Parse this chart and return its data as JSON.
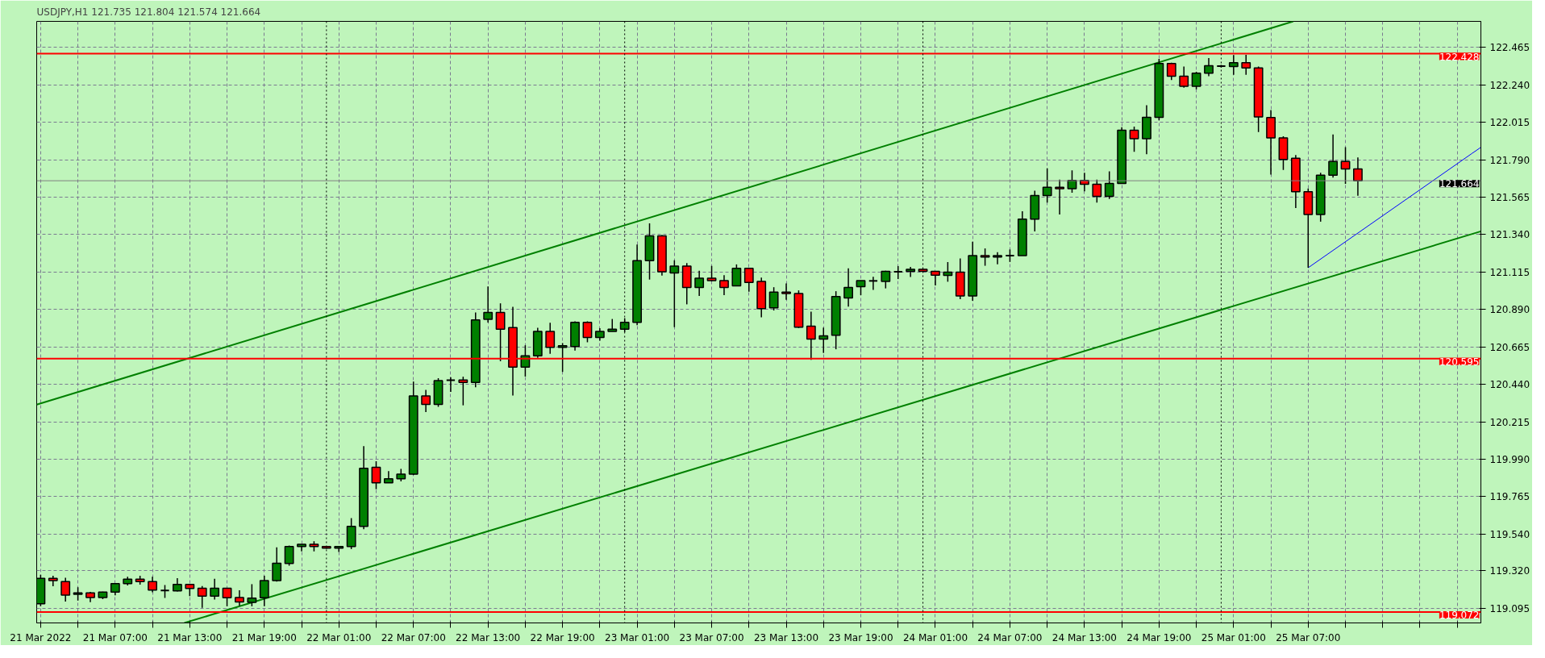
{
  "chart_data": {
    "type": "candlestick",
    "title": "USDJPY,H1  121.735 121.804 121.574 121.664",
    "x": [
      "2022-03-21T01:00",
      "2022-03-21T02:00",
      "2022-03-21T03:00",
      "2022-03-21T04:00",
      "2022-03-21T05:00",
      "2022-03-21T06:00",
      "2022-03-21T07:00",
      "2022-03-21T08:00",
      "2022-03-21T09:00",
      "2022-03-21T10:00",
      "2022-03-21T11:00",
      "2022-03-21T12:00",
      "2022-03-21T13:00",
      "2022-03-21T14:00",
      "2022-03-21T15:00",
      "2022-03-21T16:00",
      "2022-03-21T17:00",
      "2022-03-21T18:00",
      "2022-03-21T19:00",
      "2022-03-21T20:00",
      "2022-03-21T21:00",
      "2022-03-21T22:00",
      "2022-03-21T23:00",
      "2022-03-22T00:00",
      "2022-03-22T01:00",
      "2022-03-22T02:00",
      "2022-03-22T03:00",
      "2022-03-22T04:00",
      "2022-03-22T05:00",
      "2022-03-22T06:00",
      "2022-03-22T07:00",
      "2022-03-22T08:00",
      "2022-03-22T09:00",
      "2022-03-22T10:00",
      "2022-03-22T11:00",
      "2022-03-22T12:00",
      "2022-03-22T13:00",
      "2022-03-22T14:00",
      "2022-03-22T15:00",
      "2022-03-22T16:00",
      "2022-03-22T17:00",
      "2022-03-22T18:00",
      "2022-03-22T19:00",
      "2022-03-22T20:00",
      "2022-03-22T21:00",
      "2022-03-22T22:00",
      "2022-03-22T23:00",
      "2022-03-23T00:00",
      "2022-03-23T01:00",
      "2022-03-23T02:00",
      "2022-03-23T03:00",
      "2022-03-23T04:00",
      "2022-03-23T05:00",
      "2022-03-23T06:00",
      "2022-03-23T07:00",
      "2022-03-23T08:00",
      "2022-03-23T09:00",
      "2022-03-23T10:00",
      "2022-03-23T11:00",
      "2022-03-23T12:00",
      "2022-03-23T13:00",
      "2022-03-23T14:00",
      "2022-03-23T15:00",
      "2022-03-23T16:00",
      "2022-03-23T17:00",
      "2022-03-23T18:00",
      "2022-03-23T19:00",
      "2022-03-23T20:00",
      "2022-03-23T21:00",
      "2022-03-23T22:00",
      "2022-03-23T23:00",
      "2022-03-24T00:00",
      "2022-03-24T01:00",
      "2022-03-24T02:00",
      "2022-03-24T03:00",
      "2022-03-24T04:00",
      "2022-03-24T05:00",
      "2022-03-24T06:00",
      "2022-03-24T07:00",
      "2022-03-24T08:00",
      "2022-03-24T09:00",
      "2022-03-24T10:00",
      "2022-03-24T11:00",
      "2022-03-24T12:00",
      "2022-03-24T13:00",
      "2022-03-24T14:00",
      "2022-03-24T15:00",
      "2022-03-24T16:00",
      "2022-03-24T17:00",
      "2022-03-24T18:00",
      "2022-03-24T19:00",
      "2022-03-24T20:00",
      "2022-03-24T21:00",
      "2022-03-24T22:00",
      "2022-03-24T23:00",
      "2022-03-25T00:00",
      "2022-03-25T01:00",
      "2022-03-25T02:00",
      "2022-03-25T03:00",
      "2022-03-25T04:00",
      "2022-03-25T05:00",
      "2022-03-25T06:00",
      "2022-03-25T07:00",
      "2022-03-25T08:00",
      "2022-03-25T09:00",
      "2022-03-25T10:00",
      "2022-03-25T11:00"
    ],
    "ohlc": [
      [
        119.121,
        119.296,
        119.106,
        119.274
      ],
      [
        119.274,
        119.289,
        119.226,
        119.26
      ],
      [
        119.255,
        119.278,
        119.135,
        119.173
      ],
      [
        119.178,
        119.22,
        119.14,
        119.187
      ],
      [
        119.187,
        119.193,
        119.131,
        119.159
      ],
      [
        119.159,
        119.194,
        119.149,
        119.191
      ],
      [
        119.191,
        119.242,
        119.172,
        119.242
      ],
      [
        119.242,
        119.284,
        119.231,
        119.269
      ],
      [
        119.269,
        119.289,
        119.236,
        119.254
      ],
      [
        119.255,
        119.284,
        119.19,
        119.204
      ],
      [
        119.201,
        119.234,
        119.156,
        119.201
      ],
      [
        119.199,
        119.275,
        119.195,
        119.237
      ],
      [
        119.237,
        119.237,
        119.167,
        119.213
      ],
      [
        119.214,
        119.228,
        119.097,
        119.167
      ],
      [
        119.167,
        119.271,
        119.147,
        119.214
      ],
      [
        119.214,
        119.214,
        119.106,
        119.158
      ],
      [
        119.159,
        119.202,
        119.109,
        119.132
      ],
      [
        119.129,
        119.239,
        119.106,
        119.155
      ],
      [
        119.158,
        119.289,
        119.106,
        119.26
      ],
      [
        119.26,
        119.461,
        119.254,
        119.365
      ],
      [
        119.363,
        119.471,
        119.35,
        119.465
      ],
      [
        119.465,
        119.479,
        119.436,
        119.479
      ],
      [
        119.479,
        119.497,
        119.436,
        119.465
      ],
      [
        119.465,
        119.465,
        119.452,
        119.456
      ],
      [
        119.456,
        119.465,
        119.432,
        119.465
      ],
      [
        119.465,
        119.636,
        119.45,
        119.586
      ],
      [
        119.586,
        120.069,
        119.57,
        119.936
      ],
      [
        119.941,
        119.978,
        119.81,
        119.848
      ],
      [
        119.848,
        119.918,
        119.848,
        119.872
      ],
      [
        119.872,
        119.932,
        119.857,
        119.9
      ],
      [
        119.9,
        120.457,
        119.895,
        120.37
      ],
      [
        120.37,
        120.407,
        120.273,
        120.32
      ],
      [
        120.32,
        120.477,
        120.305,
        120.462
      ],
      [
        120.465,
        120.483,
        120.395,
        120.465
      ],
      [
        120.466,
        120.486,
        120.314,
        120.452
      ],
      [
        120.452,
        120.872,
        120.423,
        120.827
      ],
      [
        120.831,
        121.029,
        120.812,
        120.872
      ],
      [
        120.872,
        120.927,
        120.579,
        120.772
      ],
      [
        120.781,
        120.906,
        120.373,
        120.544
      ],
      [
        120.544,
        120.675,
        120.487,
        120.612
      ],
      [
        120.612,
        120.78,
        120.599,
        120.758
      ],
      [
        120.758,
        120.81,
        120.624,
        120.662
      ],
      [
        120.662,
        120.688,
        120.515,
        120.672
      ],
      [
        120.667,
        120.819,
        120.643,
        120.813
      ],
      [
        120.813,
        120.819,
        120.693,
        120.722
      ],
      [
        120.722,
        120.778,
        120.702,
        120.758
      ],
      [
        120.758,
        120.833,
        120.758,
        120.772
      ],
      [
        120.772,
        120.838,
        120.754,
        120.813
      ],
      [
        120.813,
        121.28,
        120.796,
        121.183
      ],
      [
        121.183,
        121.408,
        121.07,
        121.333
      ],
      [
        121.333,
        121.338,
        121.094,
        121.117
      ],
      [
        121.11,
        121.186,
        120.784,
        121.151
      ],
      [
        121.151,
        121.169,
        120.921,
        121.023
      ],
      [
        121.023,
        121.123,
        120.971,
        121.078
      ],
      [
        121.078,
        121.152,
        121.059,
        121.064
      ],
      [
        121.064,
        121.096,
        120.976,
        121.023
      ],
      [
        121.032,
        121.161,
        121.032,
        121.137
      ],
      [
        121.137,
        121.137,
        120.997,
        121.053
      ],
      [
        121.059,
        121.082,
        120.843,
        120.895
      ],
      [
        120.9,
        121.024,
        120.884,
        120.995
      ],
      [
        120.995,
        121.047,
        120.948,
        120.986
      ],
      [
        120.986,
        121.005,
        120.779,
        120.784
      ],
      [
        120.79,
        120.877,
        120.588,
        120.712
      ],
      [
        120.712,
        120.781,
        120.629,
        120.731
      ],
      [
        120.735,
        121.0,
        120.651,
        120.968
      ],
      [
        120.959,
        121.137,
        120.907,
        121.023
      ],
      [
        121.027,
        121.064,
        120.976,
        121.064
      ],
      [
        121.062,
        121.087,
        121.008,
        121.062
      ],
      [
        121.059,
        121.123,
        121.017,
        121.119
      ],
      [
        121.117,
        121.151,
        121.073,
        121.117
      ],
      [
        121.119,
        121.146,
        121.085,
        121.132
      ],
      [
        121.132,
        121.134,
        121.117,
        121.119
      ],
      [
        121.119,
        121.119,
        121.035,
        121.096
      ],
      [
        121.095,
        121.175,
        121.057,
        121.114
      ],
      [
        121.114,
        121.197,
        120.952,
        120.971
      ],
      [
        120.971,
        121.298,
        120.943,
        121.214
      ],
      [
        121.214,
        121.257,
        121.153,
        121.205
      ],
      [
        121.205,
        121.234,
        121.162,
        121.214
      ],
      [
        121.214,
        121.251,
        121.176,
        121.214
      ],
      [
        121.214,
        121.48,
        121.214,
        121.433
      ],
      [
        121.433,
        121.604,
        121.359,
        121.575
      ],
      [
        121.575,
        121.739,
        121.532,
        121.625
      ],
      [
        121.625,
        121.671,
        121.461,
        121.616
      ],
      [
        121.616,
        121.727,
        121.592,
        121.666
      ],
      [
        121.666,
        121.712,
        121.601,
        121.643
      ],
      [
        121.643,
        121.671,
        121.532,
        121.57
      ],
      [
        121.57,
        121.721,
        121.555,
        121.648
      ],
      [
        121.648,
        121.986,
        121.645,
        121.968
      ],
      [
        121.968,
        121.99,
        121.838,
        121.917
      ],
      [
        121.917,
        122.118,
        121.824,
        122.045
      ],
      [
        122.045,
        122.397,
        122.027,
        122.369
      ],
      [
        122.369,
        122.374,
        122.269,
        122.292
      ],
      [
        122.292,
        122.351,
        122.223,
        122.232
      ],
      [
        122.232,
        122.319,
        122.214,
        122.31
      ],
      [
        122.31,
        122.401,
        122.292,
        122.356
      ],
      [
        122.353,
        122.36,
        122.345,
        122.353
      ],
      [
        122.351,
        122.42,
        122.301,
        122.374
      ],
      [
        122.374,
        122.421,
        122.301,
        122.342
      ],
      [
        122.342,
        122.351,
        121.957,
        122.048
      ],
      [
        122.044,
        122.089,
        121.701,
        121.922
      ],
      [
        121.922,
        121.931,
        121.729,
        121.792
      ],
      [
        121.799,
        121.818,
        121.5,
        121.598
      ],
      [
        121.598,
        121.617,
        121.141,
        121.461
      ],
      [
        121.461,
        121.712,
        121.418,
        121.698
      ],
      [
        121.698,
        121.942,
        121.683,
        121.78
      ],
      [
        121.78,
        121.866,
        121.645,
        121.735
      ],
      [
        121.735,
        121.804,
        121.574,
        121.664
      ]
    ],
    "colors": [
      "#008000",
      "#ff0000",
      "#ff0000",
      "#008000",
      "#ff0000",
      "#008000",
      "#008000",
      "#008000",
      "#ff0000",
      "#ff0000",
      "#000000",
      "#008000",
      "#ff0000",
      "#ff0000",
      "#008000",
      "#ff0000",
      "#ff0000",
      "#008000",
      "#008000",
      "#008000",
      "#008000",
      "#008000",
      "#ff0000",
      "#ff0000",
      "#008000",
      "#008000",
      "#008000",
      "#ff0000",
      "#008000",
      "#008000",
      "#008000",
      "#ff0000",
      "#008000",
      "#000000",
      "#ff0000",
      "#008000",
      "#008000",
      "#ff0000",
      "#ff0000",
      "#008000",
      "#008000",
      "#ff0000",
      "#008000",
      "#008000",
      "#ff0000",
      "#008000",
      "#008000",
      "#008000",
      "#008000",
      "#008000",
      "#ff0000",
      "#008000",
      "#ff0000",
      "#008000",
      "#ff0000",
      "#ff0000",
      "#008000",
      "#ff0000",
      "#ff0000",
      "#008000",
      "#ff0000",
      "#ff0000",
      "#ff0000",
      "#008000",
      "#008000",
      "#008000",
      "#008000",
      "#000000",
      "#008000",
      "#000000",
      "#008000",
      "#ff0000",
      "#ff0000",
      "#008000",
      "#ff0000",
      "#008000",
      "#ff0000",
      "#008000",
      "#000000",
      "#008000",
      "#008000",
      "#008000",
      "#ff0000",
      "#008000",
      "#ff0000",
      "#ff0000",
      "#008000",
      "#008000",
      "#ff0000",
      "#008000",
      "#008000",
      "#ff0000",
      "#ff0000",
      "#008000",
      "#008000",
      "#000000",
      "#008000",
      "#ff0000",
      "#ff0000",
      "#ff0000",
      "#ff0000",
      "#ff0000",
      "#ff0000",
      "#008000",
      "#008000",
      "#ff0000",
      "#ff0000"
    ],
    "series": [
      {
        "type": "line",
        "color": "#008000",
        "x": [
          "2022-03-21T00:41",
          "2022-03-25T05:48"
        ],
        "values": [
          120.318,
          122.622
        ]
      },
      {
        "type": "line",
        "color": "#008000",
        "x": [
          "2022-03-21T12:34",
          "2022-03-25T20:54"
        ],
        "values": [
          119.006,
          121.36
        ]
      },
      {
        "type": "line",
        "color": "#0000ff",
        "x": [
          "2022-03-25T07:00",
          "2022-03-25T20:12",
          "2022-03-25T20:54"
        ],
        "values": [
          121.141,
          121.829,
          121.865
        ]
      }
    ],
    "xlim": [
      "2022-03-21T00:41",
      "2022-03-25T20:54"
    ],
    "ylim": [
      119.006,
      122.622
    ],
    "xticks": [
      {
        "value": "2022-03-21T01:00",
        "label": "21 Mar 2022"
      },
      {
        "value": "2022-03-21T04:00",
        "label": null
      },
      {
        "value": "2022-03-21T07:00",
        "label": "21 Mar 07:00"
      },
      {
        "value": "2022-03-21T10:00",
        "label": null
      },
      {
        "value": "2022-03-21T13:00",
        "label": "21 Mar 13:00"
      },
      {
        "value": "2022-03-21T16:00",
        "label": null
      },
      {
        "value": "2022-03-21T19:00",
        "label": "21 Mar 19:00"
      },
      {
        "value": "2022-03-21T22:00",
        "label": null
      },
      {
        "value": "2022-03-22T01:00",
        "label": "22 Mar 01:00"
      },
      {
        "value": "2022-03-22T04:00",
        "label": null
      },
      {
        "value": "2022-03-22T07:00",
        "label": "22 Mar 07:00"
      },
      {
        "value": "2022-03-22T10:00",
        "label": null
      },
      {
        "value": "2022-03-22T13:00",
        "label": "22 Mar 13:00"
      },
      {
        "value": "2022-03-22T16:00",
        "label": null
      },
      {
        "value": "2022-03-22T19:00",
        "label": "22 Mar 19:00"
      },
      {
        "value": "2022-03-22T22:00",
        "label": null
      },
      {
        "value": "2022-03-23T01:00",
        "label": "23 Mar 01:00"
      },
      {
        "value": "2022-03-23T04:00",
        "label": null
      },
      {
        "value": "2022-03-23T07:00",
        "label": "23 Mar 07:00"
      },
      {
        "value": "2022-03-23T10:00",
        "label": null
      },
      {
        "value": "2022-03-23T13:00",
        "label": "23 Mar 13:00"
      },
      {
        "value": "2022-03-23T16:00",
        "label": null
      },
      {
        "value": "2022-03-23T19:00",
        "label": "23 Mar 19:00"
      },
      {
        "value": "2022-03-23T22:00",
        "label": null
      },
      {
        "value": "2022-03-24T01:00",
        "label": "24 Mar 01:00"
      },
      {
        "value": "2022-03-24T04:00",
        "label": null
      },
      {
        "value": "2022-03-24T07:00",
        "label": "24 Mar 07:00"
      },
      {
        "value": "2022-03-24T10:00",
        "label": null
      },
      {
        "value": "2022-03-24T13:00",
        "label": "24 Mar 13:00"
      },
      {
        "value": "2022-03-24T16:00",
        "label": null
      },
      {
        "value": "2022-03-24T19:00",
        "label": "24 Mar 19:00"
      },
      {
        "value": "2022-03-24T22:00",
        "label": null
      },
      {
        "value": "2022-03-25T01:00",
        "label": "25 Mar 01:00"
      },
      {
        "value": "2022-03-25T04:00",
        "label": null
      },
      {
        "value": "2022-03-25T07:00",
        "label": "25 Mar 07:00"
      },
      {
        "value": "2022-03-25T10:00",
        "label": null
      },
      {
        "value": "2022-03-25T13:00",
        "label": null
      },
      {
        "value": "2022-03-25T16:00",
        "label": null
      },
      {
        "value": "2022-03-25T19:00",
        "label": null
      }
    ],
    "yticks": [
      {
        "value": 122.465,
        "label": "122.465"
      },
      {
        "value": 122.24,
        "label": "122.240"
      },
      {
        "value": 122.015,
        "label": "122.015"
      },
      {
        "value": 121.79,
        "label": "121.790"
      },
      {
        "value": 121.565,
        "label": "121.565"
      },
      {
        "value": 121.34,
        "label": "121.340"
      },
      {
        "value": 121.115,
        "label": "121.115"
      },
      {
        "value": 120.89,
        "label": "120.890"
      },
      {
        "value": 120.665,
        "label": "120.665"
      },
      {
        "value": 120.44,
        "label": "120.440"
      },
      {
        "value": 120.215,
        "label": "120.215"
      },
      {
        "value": 119.99,
        "label": "119.990"
      },
      {
        "value": 119.765,
        "label": "119.765"
      },
      {
        "value": 119.54,
        "label": "119.540"
      },
      {
        "value": 119.32,
        "label": "119.320"
      },
      {
        "value": 119.095,
        "label": "119.095"
      }
    ],
    "ref_lines": [
      {
        "axis": "y",
        "value": 122.428,
        "label": "122.428",
        "color": "#ff0000"
      },
      {
        "axis": "y",
        "value": 120.595,
        "label": "120.595",
        "color": "#ff0000"
      },
      {
        "axis": "y",
        "value": 119.072,
        "label": "119.072",
        "color": "#ff0000"
      },
      {
        "axis": "y",
        "value": 121.664,
        "label": "121.664",
        "color": "#808080"
      },
      {
        "axis": "x",
        "value": "2022-03-22T00:00",
        "color": "#000000",
        "line_style": "dotted"
      },
      {
        "axis": "x",
        "value": "2022-03-23T00:00",
        "color": "#000000",
        "line_style": "dotted"
      },
      {
        "axis": "x",
        "value": "2022-03-24T00:00",
        "color": "#000000",
        "line_style": "dotted"
      },
      {
        "axis": "x",
        "value": "2022-03-25T00:00",
        "color": "#000000",
        "line_style": "dotted"
      }
    ],
    "grid": true
  }
}
